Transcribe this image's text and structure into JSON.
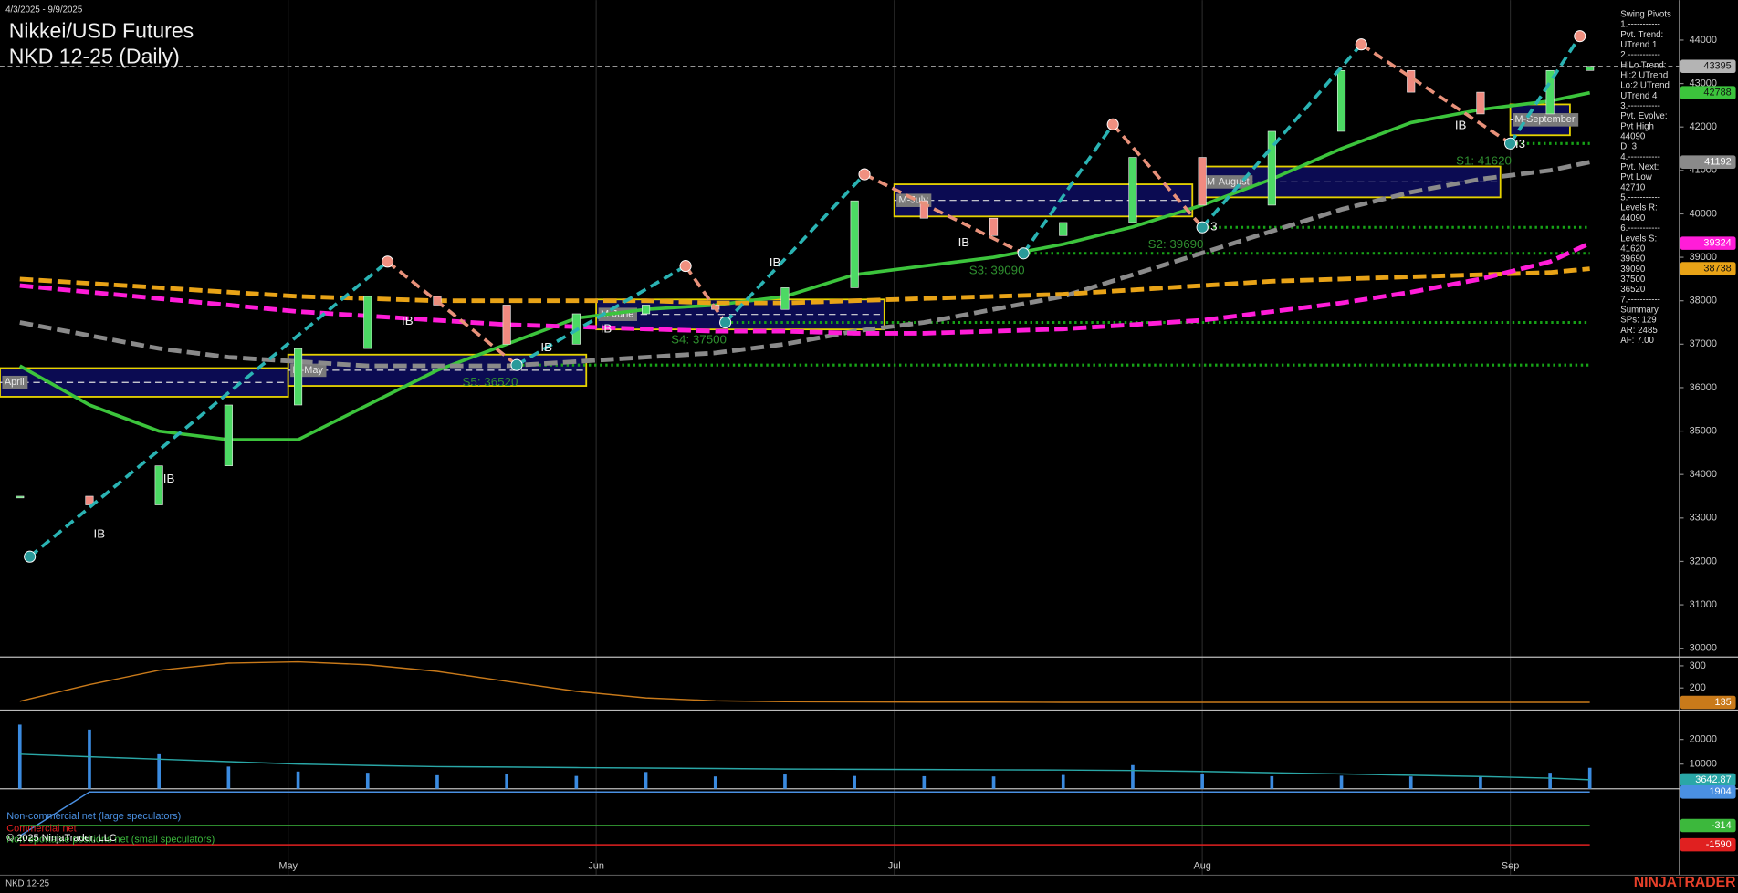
{
  "header": {
    "date_range": "4/3/2025 - 9/9/2025",
    "title": "Nikkei/USD Futures",
    "subtitle": "NKD 12-25 (Daily)"
  },
  "swing_pivots_panel": {
    "lines": [
      "Swing Pivots",
      "1.-----------",
      "Pvt. Trend:",
      "UTrend 1",
      "2.-----------",
      "HiLo Trend:",
      "Hi:2 UTrend",
      "Lo:2 UTrend",
      "UTrend 4",
      "3.-----------",
      "Pvt. Evolve:",
      "Pvt High",
      "44090",
      "D: 3",
      "4.-----------",
      "Pvt. Next:",
      "Pvt Low",
      "42710",
      "5.-----------",
      "Levels R:",
      "44090",
      "6.-----------",
      "Levels S:",
      "41620",
      "39690",
      "39090",
      "37500",
      "36520",
      "7.-----------",
      "Summary",
      "SPs: 129",
      "AR: 2485",
      "AF: 7.00"
    ]
  },
  "footer": {
    "symbol": "NKD 12-25",
    "copyright": "© 2025 NinjaTrader, LLC",
    "brand": "NINJATRADER"
  },
  "chart_data": [
    {
      "type": "line",
      "x": [
        "4/4/2025",
        "4/11/2025",
        "4/18/2025",
        "4/25/2025",
        "5/2/2025",
        "5/9/2025",
        "5/16/2025",
        "5/23/2025",
        "5/30/2025",
        "6/6/2025",
        "6/13/2025",
        "6/20/2025",
        "6/27/2025",
        "7/4/2025",
        "7/11/2025",
        "7/18/2025",
        "7/25/2025",
        "8/1/2025",
        "8/8/2025",
        "8/15/2025",
        "8/22/2025",
        "8/29/2025",
        "9/5/2025",
        "9/9/2025"
      ],
      "xlim": [
        "4/2/2025",
        "9/18/2025"
      ],
      "xticks": [
        {
          "value": "5/1/2025",
          "label": "May"
        },
        {
          "value": "6/1/2025",
          "label": "Jun"
        },
        {
          "value": "7/1/2025",
          "label": "Jul"
        },
        {
          "value": "8/1/2025",
          "label": "Aug"
        },
        {
          "value": "9/1/2025",
          "label": "Sep"
        }
      ],
      "grid": true,
      "ylim": [
        29800,
        44920
      ],
      "yticks": [
        30000,
        31000,
        32000,
        33000,
        34000,
        35000,
        36000,
        37000,
        38000,
        39000,
        40000,
        41000,
        42000,
        43000,
        44000
      ],
      "series": [
        {
          "style": "candle",
          "color": "#b4b4b4",
          "up_color": "#4cd964",
          "down_color": "#f08a80",
          "tag": true,
          "last_line": true,
          "values": [
            33500,
            33300,
            34200,
            35600,
            36900,
            38100,
            37900,
            37000,
            37700,
            37900,
            37800,
            38300,
            40300,
            39900,
            39500,
            39800,
            41300,
            40200,
            41900,
            43300,
            42800,
            42300,
            43300,
            43395
          ]
        },
        {
          "style": "line",
          "color": "#3cc43c",
          "tag": true,
          "values": [
            36500,
            35600,
            35000,
            34800,
            34800,
            35600,
            36400,
            37000,
            37600,
            37800,
            37900,
            38100,
            38600,
            38800,
            39000,
            39300,
            39700,
            40200,
            40800,
            41500,
            42100,
            42400,
            42600,
            42788
          ]
        },
        {
          "style": "dashed",
          "color": "#8a8a8a",
          "tag": true,
          "values": [
            37500,
            37200,
            36900,
            36700,
            36600,
            36500,
            36500,
            36500,
            36600,
            36700,
            36800,
            37000,
            37300,
            37500,
            37800,
            38100,
            38600,
            39100,
            39600,
            40100,
            40500,
            40800,
            41000,
            41192
          ]
        },
        {
          "style": "dashed",
          "color": "#e8a317",
          "tag": true,
          "values": [
            38500,
            38400,
            38300,
            38200,
            38100,
            38050,
            38000,
            38000,
            38000,
            38000,
            37950,
            37950,
            38000,
            38050,
            38100,
            38150,
            38250,
            38350,
            38450,
            38500,
            38550,
            38600,
            38650,
            38738
          ]
        },
        {
          "style": "dashed",
          "color": "#ff1dd8",
          "tag": true,
          "values": [
            38350,
            38200,
            38050,
            37900,
            37750,
            37650,
            37550,
            37450,
            37400,
            37350,
            37300,
            37300,
            37250,
            37250,
            37300,
            37350,
            37450,
            37550,
            37750,
            37950,
            38200,
            38500,
            38900,
            39324
          ]
        }
      ],
      "levels": [
        {
          "value": 41620,
          "label": "S1: 41620",
          "start": "9/1/2025"
        },
        {
          "value": 39690,
          "label": "S2: 39690",
          "start": "8/1/2025"
        },
        {
          "value": 39090,
          "label": "S3: 39090",
          "start": "7/14/2025"
        },
        {
          "value": 37500,
          "label": "S4: 37500",
          "start": "6/14/2025"
        },
        {
          "value": 36520,
          "label": "S5: 36520",
          "start": "5/24/2025"
        }
      ],
      "boxes": [
        {
          "label": "April",
          "start": "4/2/2025",
          "end": "5/1/2025",
          "high": 36450,
          "low": 35790
        },
        {
          "label": "M-May",
          "start": "5/1/2025",
          "end": "5/31/2025",
          "high": 36760,
          "low": 36040
        },
        {
          "label": "M-June",
          "start": "6/1/2025",
          "end": "6/30/2025",
          "high": 38030,
          "low": 37340
        },
        {
          "label": "M-July",
          "start": "7/1/2025",
          "end": "7/31/2025",
          "high": 40680,
          "low": 39940
        },
        {
          "label": "M-August",
          "start": "8/1/2025",
          "end": "8/31/2025",
          "high": 41090,
          "low": 40380
        },
        {
          "label": "M-September",
          "start": "9/1/2025",
          "end": "9/7/2025",
          "high": 42520,
          "low": 41810
        }
      ],
      "swing_pivots": {
        "up_color": "#2ab3b3",
        "down_color": "#e8917a",
        "x": [
          "4/5/2025",
          "5/11/2025",
          "5/24/2025",
          "6/10/2025",
          "6/14/2025",
          "6/28/2025",
          "7/14/2025",
          "7/23/2025",
          "8/1/2025",
          "8/17/2025",
          "9/1/2025",
          "9/8/2025"
        ],
        "values": [
          32110,
          38900,
          36520,
          38800,
          37500,
          40910,
          39090,
          42060,
          39690,
          43900,
          41620,
          44090
        ]
      },
      "annotations": [
        {
          "text": "IB",
          "x": "4/12/2025",
          "y": 32620
        },
        {
          "text": "IB",
          "x": "4/19/2025",
          "y": 33890
        },
        {
          "text": "IB",
          "x": "5/13/2025",
          "y": 37520
        },
        {
          "text": "IB",
          "x": "5/27/2025",
          "y": 36910
        },
        {
          "text": "IB",
          "x": "6/2/2025",
          "y": 37340
        },
        {
          "text": "IB",
          "x": "6/19/2025",
          "y": 38870
        },
        {
          "text": "IB",
          "x": "7/8/2025",
          "y": 39330
        },
        {
          "text": "IB",
          "x": "8/27/2025",
          "y": 42030
        },
        {
          "text": "I3",
          "x": "8/2/2025",
          "y": 39690
        },
        {
          "text": "I3",
          "x": "9/2/2025",
          "y": 41600
        }
      ]
    },
    {
      "type": "line",
      "ylim": [
        100,
        340
      ],
      "yticks": [
        200,
        300
      ],
      "series": [
        {
          "style": "line",
          "color": "#c97a1a",
          "tag": true,
          "values": [
            140,
            215,
            280,
            312,
            318,
            305,
            275,
            230,
            185,
            155,
            142,
            138,
            137,
            136,
            136,
            135,
            135,
            135,
            135,
            135,
            135,
            135,
            135,
            135
          ]
        }
      ]
    },
    {
      "type": "bar",
      "ylim": [
        0,
        31900
      ],
      "yticks": [
        10000,
        20000
      ],
      "series": [
        {
          "style": "bar",
          "color": "#3b8be0",
          "values": [
            26000,
            24000,
            14000,
            9000,
            7000,
            6500,
            5500,
            6000,
            5200,
            6800,
            5000,
            5800,
            5200,
            5100,
            5000,
            5600,
            9600,
            6200,
            5100,
            5300,
            5000,
            4800,
            6500,
            8500
          ]
        },
        {
          "style": "line",
          "color": "#2aa7a7",
          "tag": true,
          "values": [
            14000,
            13000,
            12000,
            11000,
            10000,
            9500,
            9000,
            8800,
            8600,
            8400,
            8200,
            8000,
            7900,
            7800,
            7700,
            7600,
            7400,
            7000,
            6500,
            6000,
            5500,
            5000,
            4300,
            3642.87
          ]
        }
      ]
    },
    {
      "type": "line",
      "ylim": [
        -3600,
        2120
      ],
      "yticks": [],
      "series": [
        {
          "name": "Non-commercial net (large speculators)",
          "style": "line",
          "color": "#4a90e2",
          "tag": true,
          "values": [
            -1000,
            1904,
            1904,
            1904,
            1904,
            1904,
            1904,
            1904,
            1904,
            1904,
            1904,
            1904,
            1904,
            1904,
            1904,
            1904,
            1904,
            1904,
            1904,
            1904,
            1904,
            1904,
            1904,
            1904
          ]
        },
        {
          "name": "Commercial net",
          "style": "line",
          "color": "#e02020",
          "tag": true,
          "values": [
            -1590,
            -1590,
            -1590,
            -1590,
            -1590,
            -1590,
            -1590,
            -1590,
            -1590,
            -1590,
            -1590,
            -1590,
            -1590,
            -1590,
            -1590,
            -1590,
            -1590,
            -1590,
            -1590,
            -1590,
            -1590,
            -1590,
            -1590,
            -1590
          ]
        },
        {
          "name": "Nonreportable positions net (small speculators)",
          "style": "line",
          "color": "#3cb83c",
          "tag": true,
          "values": [
            -314,
            -314,
            -314,
            -314,
            -314,
            -314,
            -314,
            -314,
            -314,
            -314,
            -314,
            -314,
            -314,
            -314,
            -314,
            -314,
            -314,
            -314,
            -314,
            -314,
            -314,
            -314,
            -314,
            -314
          ]
        }
      ]
    }
  ]
}
